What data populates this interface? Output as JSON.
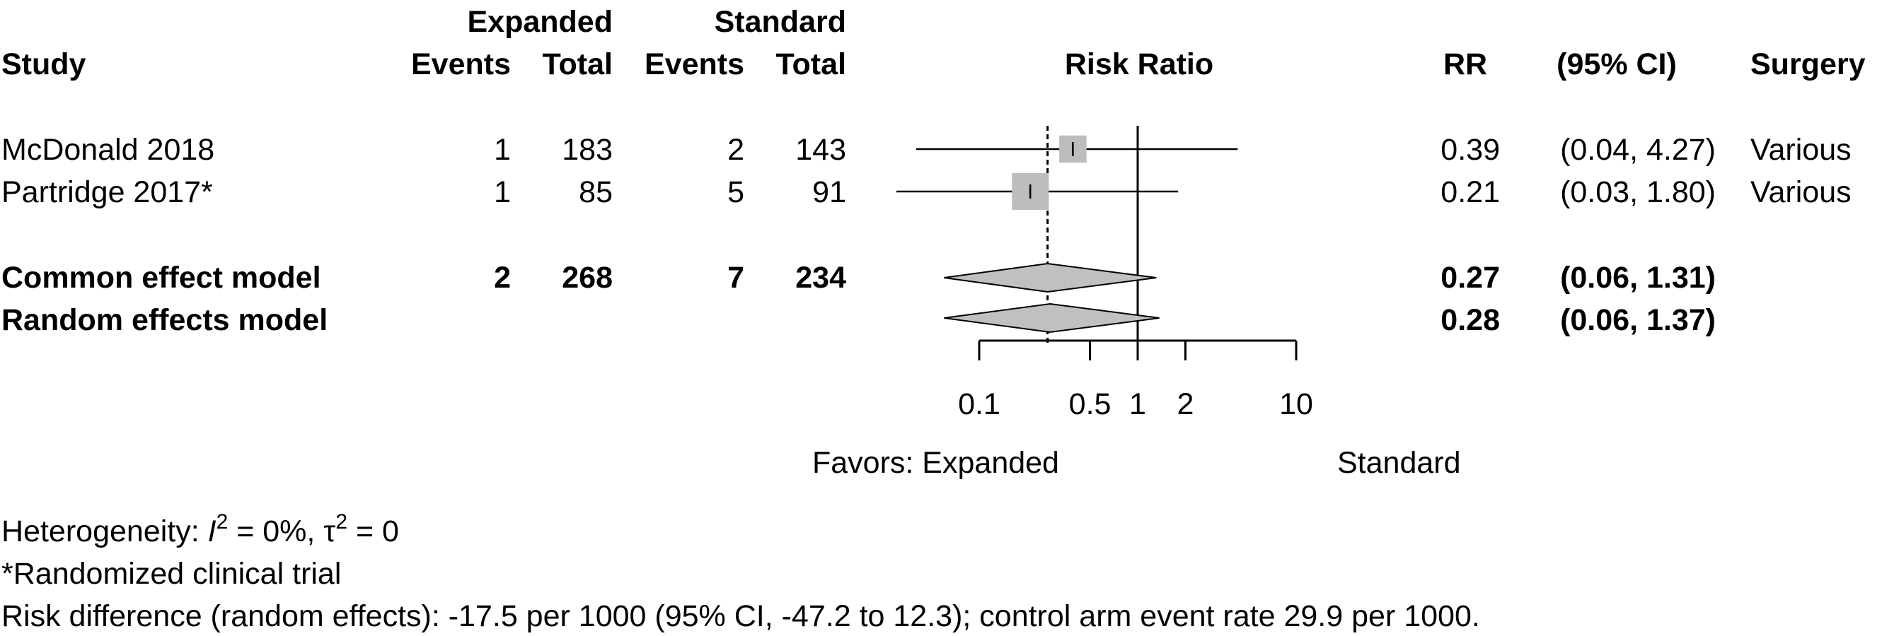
{
  "header": {
    "group1": "Expanded",
    "group2": "Standard",
    "study": "Study",
    "events1": "Events",
    "total1": "Total",
    "events2": "Events",
    "total2": "Total",
    "effect": "Risk Ratio",
    "rr": "RR",
    "ci": "(95% CI)",
    "surgery": "Surgery"
  },
  "chart_data": {
    "type": "forest",
    "measure": "Risk Ratio",
    "x_scale": "log",
    "xlim": [
      0.1,
      10
    ],
    "x_ticks": [
      0.1,
      0.5,
      1,
      2,
      10
    ],
    "x_tick_labels": [
      "0.1",
      "0.5",
      "1",
      "2",
      "10"
    ],
    "reference_line": 1,
    "pooled_reference": 0.27,
    "favors_left": "Favors: Expanded",
    "favors_right": "Standard",
    "studies": [
      {
        "name": "McDonald 2018",
        "events1": "1",
        "total1": "183",
        "events2": "2",
        "total2": "143",
        "rr": 0.39,
        "lo": 0.04,
        "hi": 4.27,
        "weight": 0.55,
        "rr_text": "0.39",
        "ci_text": "(0.04, 4.27)",
        "surgery": "Various"
      },
      {
        "name": "Partridge 2017*",
        "events1": "1",
        "total1": "85",
        "events2": "5",
        "total2": "91",
        "rr": 0.21,
        "lo": 0.03,
        "hi": 1.8,
        "weight": 1.0,
        "rr_text": "0.21",
        "ci_text": "(0.03, 1.80)",
        "surgery": "Various"
      }
    ],
    "pooled": [
      {
        "name": "Common effect model",
        "events1": "2",
        "total1": "268",
        "events2": "7",
        "total2": "234",
        "rr": 0.27,
        "lo": 0.06,
        "hi": 1.31,
        "rr_text": "0.27",
        "ci_text": "(0.06, 1.31)"
      },
      {
        "name": "Random effects model",
        "events1": "",
        "total1": "",
        "events2": "",
        "total2": "",
        "rr": 0.28,
        "lo": 0.06,
        "hi": 1.37,
        "rr_text": "0.28",
        "ci_text": "(0.06, 1.37)"
      }
    ]
  },
  "footer": {
    "het_prefix": "Heterogeneity: ",
    "het_i": "I",
    "het_i_sup": "2",
    "het_mid": " = 0%, ",
    "het_tau": "τ",
    "het_tau_sup": "2",
    "het_end": " = 0",
    "note": "*Randomized clinical trial",
    "risk_diff": "Risk difference (random effects): -17.5 per 1000 (95% CI, -47.2 to 12.3); control arm event rate 29.9 per 1000."
  },
  "colors": {
    "box": "#bdbdbd",
    "diamond": "#c0c0c0",
    "line": "#000000"
  }
}
